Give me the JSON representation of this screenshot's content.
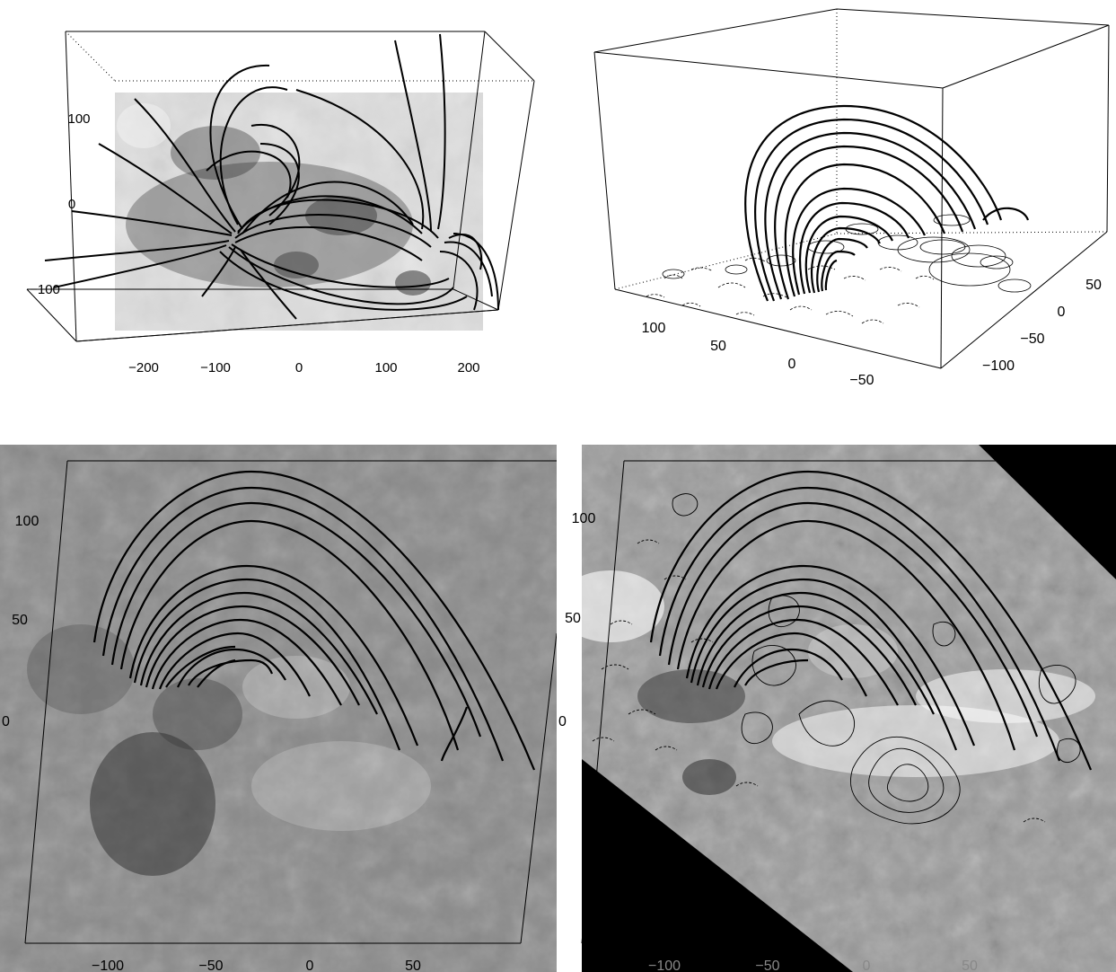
{
  "panel_a": {
    "x_ticks": [
      "−200",
      "−100",
      "0",
      "100",
      "200"
    ],
    "y_ticks": [
      "100",
      "0",
      "−100"
    ]
  },
  "panel_b": {
    "x_ticks": [
      "100",
      "50",
      "0",
      "−50"
    ],
    "y_ticks": [
      "50",
      "0",
      "−50",
      "−100"
    ]
  },
  "panel_c": {
    "x_ticks": [
      "−100",
      "−50",
      "0",
      "50"
    ],
    "y_ticks": [
      "100",
      "50",
      "0"
    ]
  },
  "panel_d": {
    "x_ticks": [
      "−100",
      "−50",
      "0",
      "50"
    ],
    "y_ticks": [
      "100",
      "50",
      "0"
    ]
  },
  "colors": {
    "ink": "#000000",
    "magnetogram_gray": "#8a8a8a",
    "mask": "#000000"
  }
}
